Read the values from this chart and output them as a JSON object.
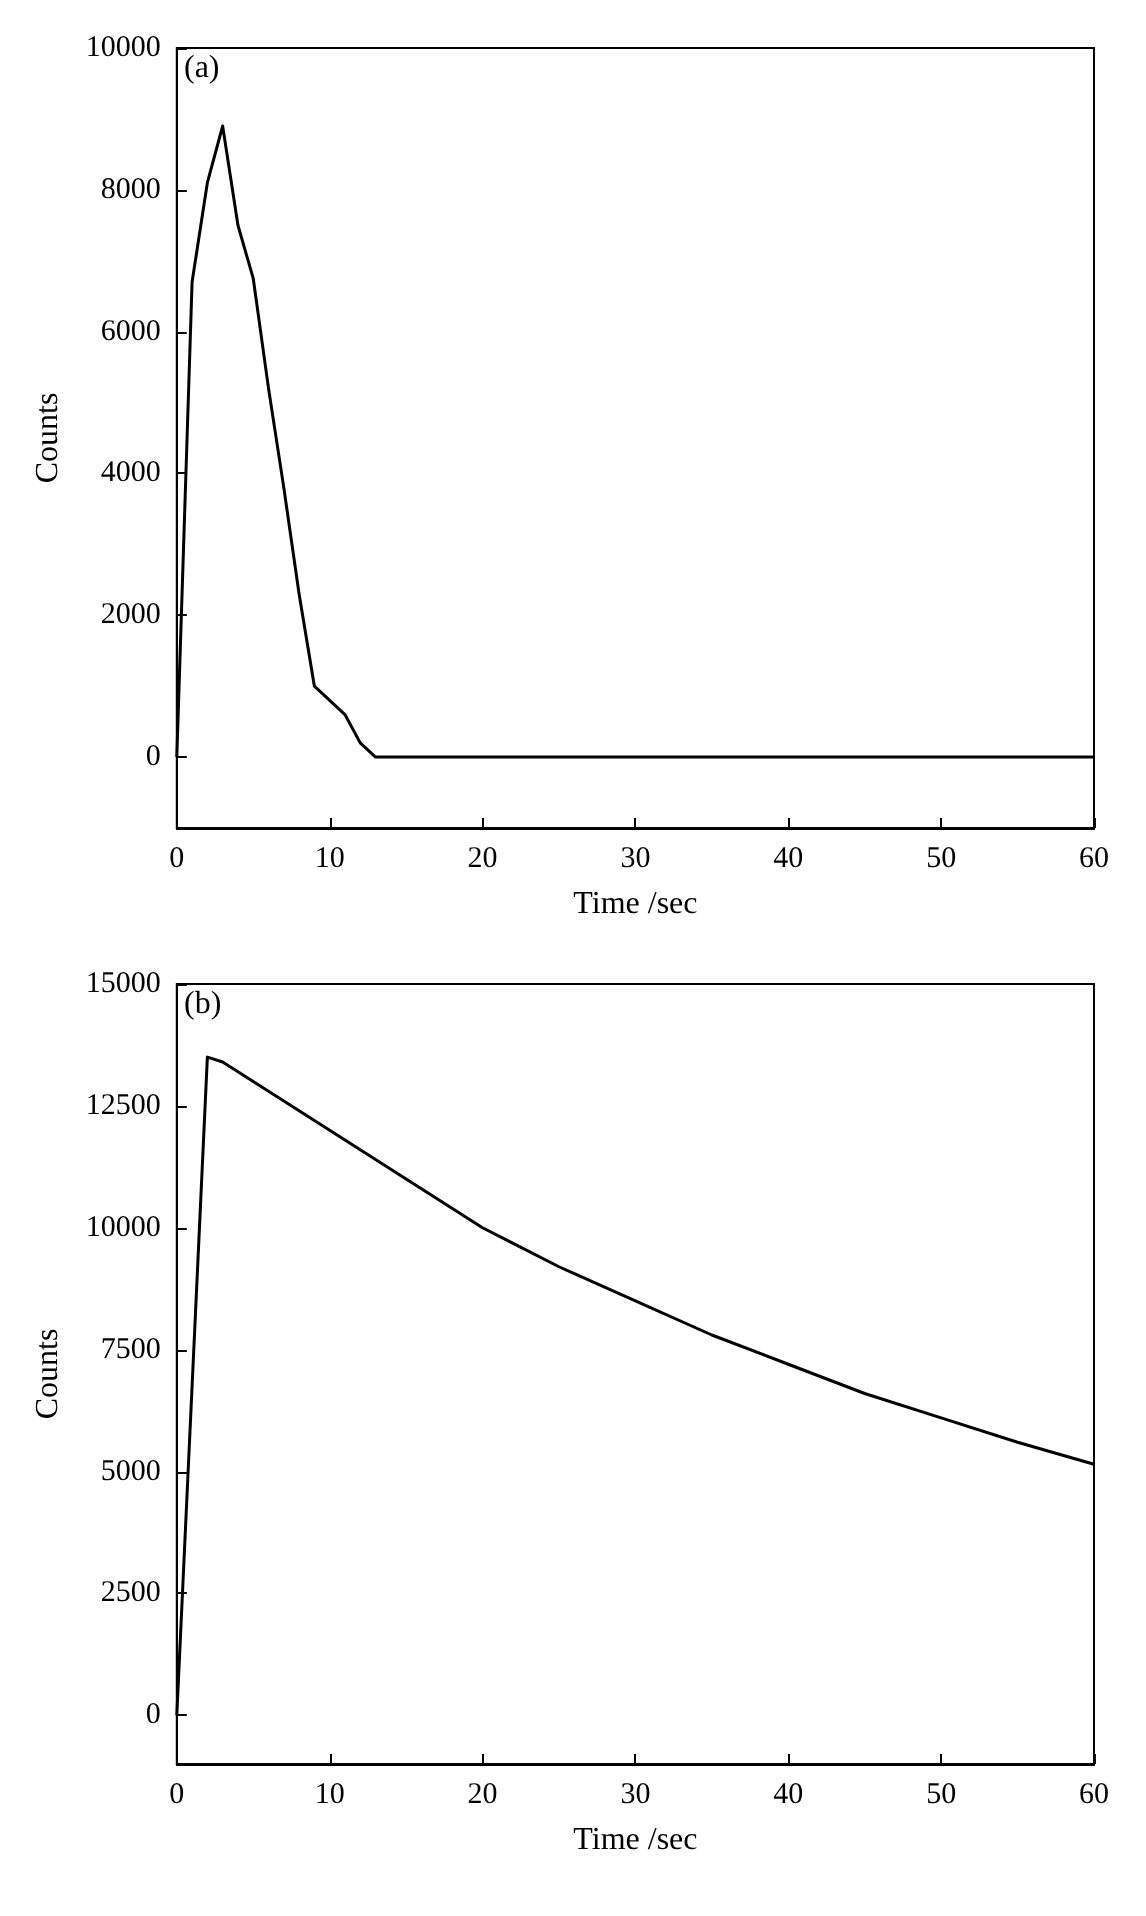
{
  "chart_data": [
    {
      "type": "line",
      "xlabel": "Time /sec",
      "ylabel": "Counts",
      "annotations": [
        "(a)"
      ],
      "xlim": [
        0,
        60
      ],
      "xticks": [
        0,
        10,
        20,
        30,
        40,
        50,
        60
      ],
      "ylim": [
        -1000,
        10000
      ],
      "yticks": [
        0,
        2000,
        4000,
        6000,
        8000,
        10000
      ],
      "grid": false,
      "marker": "none",
      "line_style": "solid",
      "series": [
        {
          "color": "#000000",
          "x": [
            0,
            1,
            2,
            3,
            4,
            5,
            6,
            7,
            8,
            9,
            10,
            11,
            12,
            13,
            20,
            30,
            40,
            50,
            60
          ],
          "values": [
            0,
            6700,
            8100,
            8900,
            7500,
            6750,
            5200,
            3800,
            2300,
            1000,
            800,
            600,
            200,
            0,
            0,
            0,
            0,
            0,
            0
          ]
        }
      ]
    },
    {
      "type": "line",
      "xlabel": "Time /sec",
      "ylabel": "Counts",
      "annotations": [
        "(b)"
      ],
      "xlim": [
        0,
        60
      ],
      "xticks": [
        0,
        10,
        20,
        30,
        40,
        50,
        60
      ],
      "ylim": [
        -1000,
        15000
      ],
      "yticks": [
        0,
        2500,
        5000,
        7500,
        10000,
        12500,
        15000
      ],
      "grid": false,
      "marker": "none",
      "line_style": "solid",
      "series": [
        {
          "color": "#000000",
          "x": [
            0,
            2,
            3,
            5,
            10,
            15,
            20,
            25,
            30,
            35,
            40,
            45,
            50,
            55,
            60
          ],
          "values": [
            0,
            13500,
            13400,
            13000,
            12000,
            11000,
            10000,
            9200,
            8500,
            7800,
            7200,
            6600,
            6100,
            5600,
            5150
          ]
        }
      ]
    }
  ]
}
